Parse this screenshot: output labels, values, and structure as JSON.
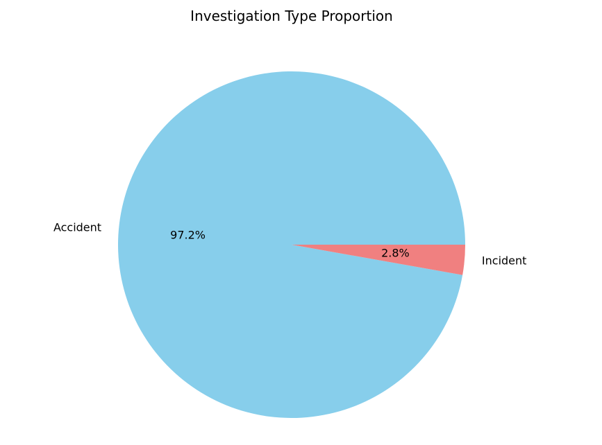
{
  "chart_data": {
    "type": "pie",
    "title": "Investigation Type Proportion",
    "categories": [
      "Accident",
      "Incident"
    ],
    "values": [
      97.2,
      2.8
    ],
    "value_labels": [
      "97.2%",
      "2.8%"
    ],
    "colors": [
      "#87ceeb",
      "#f08080"
    ],
    "start_angle_deg": 0,
    "direction": "counterclockwise",
    "legend": "none"
  }
}
